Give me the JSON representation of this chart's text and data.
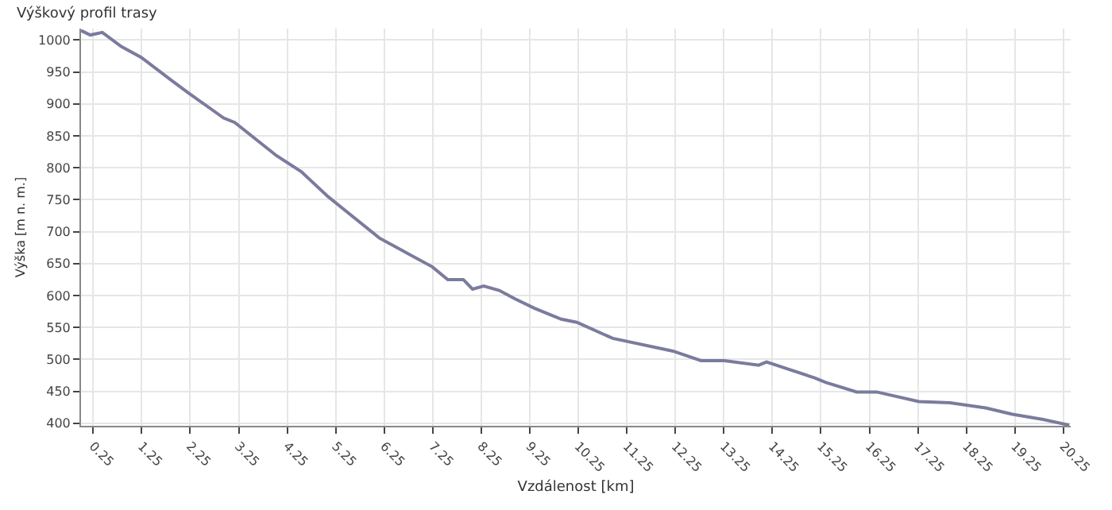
{
  "chart_data": {
    "type": "line",
    "title": "Výškový profil trasy",
    "xlabel": "Vzdálenost [km]",
    "ylabel": "Výška [m n. m.]",
    "x": [
      0,
      0.19,
      0.44,
      0.83,
      1.24,
      1.88,
      2.2,
      2.94,
      3.17,
      4.03,
      4.54,
      5.09,
      6.15,
      7.24,
      7.56,
      7.88,
      8.07,
      8.3,
      8.62,
      8.94,
      9.35,
      9.9,
      10.22,
      10.96,
      12.2,
      12.78,
      13.26,
      13.97,
      14.13,
      15.12,
      15.35,
      15.99,
      16.4,
      17.27,
      17.91,
      18.65,
      19.2,
      19.83,
      20.37
    ],
    "series": [
      {
        "color": "#7b7b9e",
        "values": [
          1015,
          1008,
          1012,
          990,
          973,
          936,
          918,
          878,
          871,
          819,
          794,
          755,
          690,
          645,
          625,
          625,
          610,
          615,
          608,
          595,
          580,
          563,
          558,
          533,
          513,
          498,
          498,
          491,
          496,
          471,
          464,
          449,
          449,
          434,
          432,
          424,
          414,
          406,
          397
        ]
      }
    ],
    "xlim": [
      0,
      20.4
    ],
    "xticks": [
      0.25,
      1.25,
      2.25,
      3.25,
      4.25,
      5.25,
      6.25,
      7.25,
      8.25,
      9.25,
      10.25,
      11.25,
      12.25,
      13.25,
      14.25,
      15.25,
      16.25,
      17.25,
      18.25,
      19.25,
      20.25
    ],
    "ylim": [
      396,
      1018
    ],
    "yticks": [
      400,
      450,
      500,
      550,
      600,
      650,
      700,
      750,
      800,
      850,
      900,
      950,
      1000
    ],
    "grid": true,
    "legend": false,
    "marker": "none",
    "line_style": "solid"
  }
}
